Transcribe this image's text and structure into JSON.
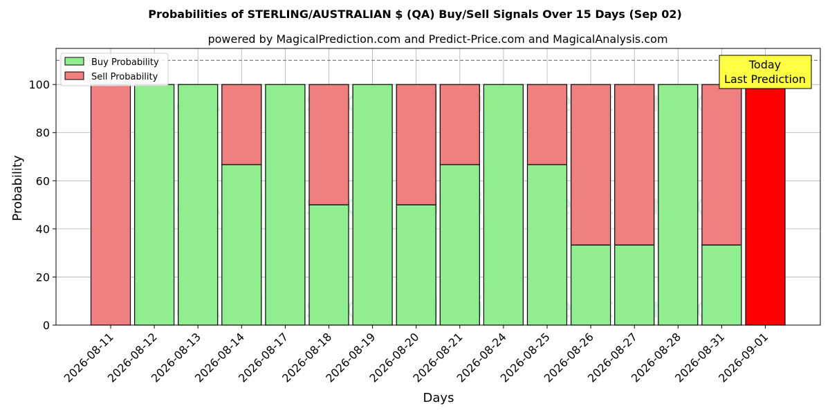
{
  "chart_data": {
    "type": "bar",
    "stacked": true,
    "title": "Probabilities of STERLING/AUSTRALIAN $ (QA) Buy/Sell Signals Over 15 Days (Sep 02)",
    "subtitle": "powered by MagicalPrediction.com and Predict-Price.com and MagicalAnalysis.com",
    "xlabel": "Days",
    "ylabel": "Probability",
    "ylim": [
      0,
      115
    ],
    "yticks": [
      0,
      20,
      40,
      60,
      80,
      100
    ],
    "reference_line": 110,
    "grid": true,
    "legend_position": "top-left",
    "categories": [
      "2026-08-11",
      "2026-08-12",
      "2026-08-13",
      "2026-08-14",
      "2026-08-17",
      "2026-08-18",
      "2026-08-19",
      "2026-08-20",
      "2026-08-21",
      "2026-08-24",
      "2026-08-25",
      "2026-08-26",
      "2026-08-27",
      "2026-08-28",
      "2026-08-31",
      "2026-09-01"
    ],
    "series": [
      {
        "name": "Buy Probability",
        "color": "#90ee90",
        "values": [
          0,
          100,
          100,
          66.7,
          100,
          50,
          100,
          50,
          66.7,
          100,
          66.7,
          33.3,
          33.3,
          100,
          33.3,
          0
        ]
      },
      {
        "name": "Sell Probability",
        "color": "#f08080",
        "values": [
          100,
          0,
          0,
          33.3,
          0,
          50,
          0,
          50,
          33.3,
          0,
          33.3,
          66.7,
          66.7,
          0,
          66.7,
          100
        ]
      }
    ],
    "highlight": {
      "category": "2026-09-01",
      "color": "#ff0000",
      "label_lines": [
        "Today",
        "Last Prediction"
      ],
      "label_bg": "#ffff44"
    },
    "watermarks": [
      "MagicalAnalysis.com",
      "MagicalPrediction.com"
    ]
  }
}
